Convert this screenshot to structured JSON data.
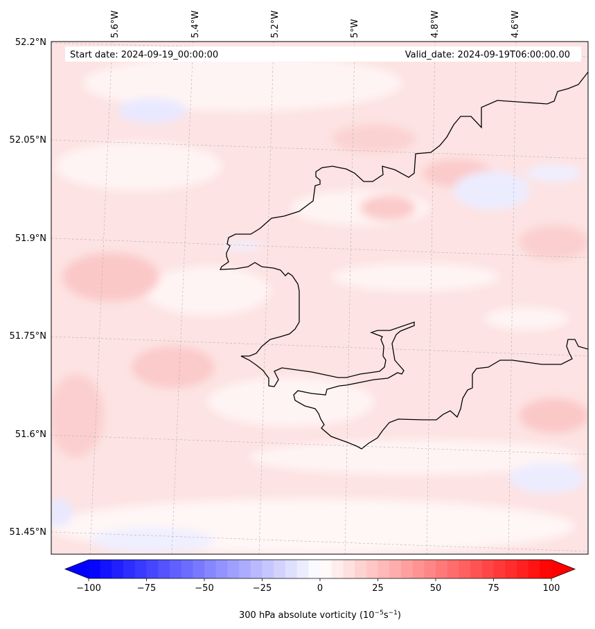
{
  "header": {
    "start_date": "Start date: 2024-09-19_00:00:00",
    "valid_date": "Valid_date: 2024-09-19T06:00:00.00"
  },
  "longitude_labels": [
    "5.6°W",
    "5.4°W",
    "5.2°W",
    "5°W",
    "4.8°W",
    "4.6°W"
  ],
  "latitude_labels": [
    "52.2°N",
    "52.05°N",
    "51.9°N",
    "51.75°N",
    "51.6°N",
    "51.45°N"
  ],
  "colorbar": {
    "min": -100,
    "max": 100,
    "tick_values": [
      -100,
      -75,
      -50,
      -25,
      0,
      25,
      50,
      75,
      100
    ],
    "tick_labels": [
      "−100",
      "−75",
      "−50",
      "−25",
      "0",
      "25",
      "50",
      "75",
      "100"
    ],
    "label_prefix": "300 hPa absolute vorticity (10",
    "label_exp1": "−5",
    "label_mid": "s",
    "label_exp2": "−1",
    "label_suffix": ")",
    "cmap": "bwr",
    "extend": "both"
  },
  "colors": {
    "negative": "#0000ff",
    "neutral": "#ffffff",
    "positive": "#ff0000",
    "coastline": "#000000",
    "gridline": "#b0b0b0"
  }
}
